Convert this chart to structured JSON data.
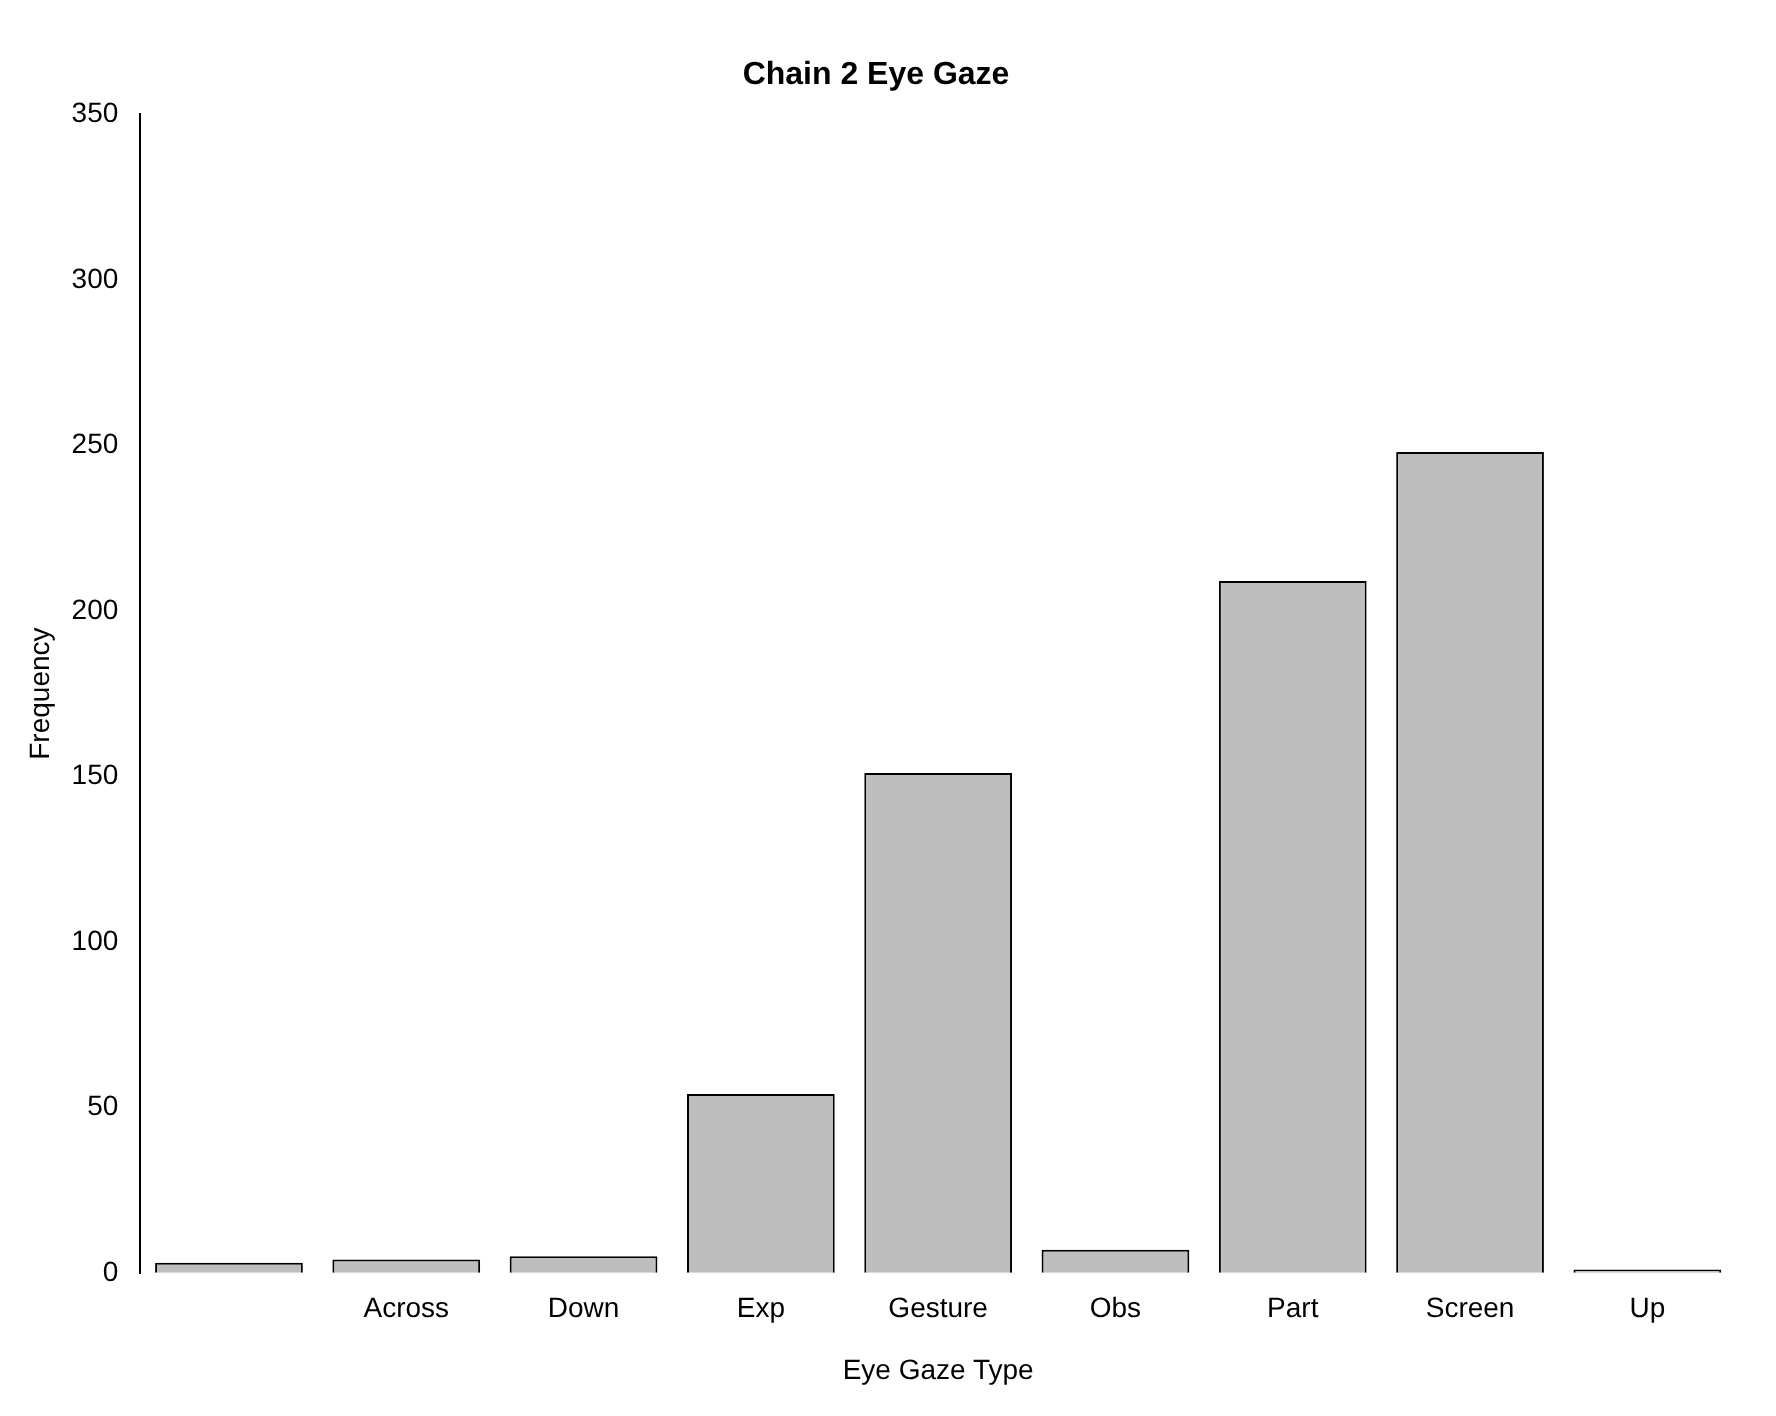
{
  "chart_data": {
    "type": "bar",
    "title": "Chain 2 Eye Gaze",
    "xlabel": "Eye Gaze Type",
    "ylabel": "Frequency",
    "categories": [
      null,
      "Across",
      "Down",
      "Exp",
      "Gesture",
      "Obs",
      "Part",
      "Screen",
      "Up"
    ],
    "values": [
      3,
      4,
      5,
      54,
      151,
      7,
      209,
      248,
      1
    ],
    "color": "#bebebe",
    "ylim": [
      0,
      350
    ],
    "yticks": [
      0,
      50,
      100,
      150,
      200,
      250,
      300,
      350
    ],
    "grid": false,
    "legend": false
  }
}
